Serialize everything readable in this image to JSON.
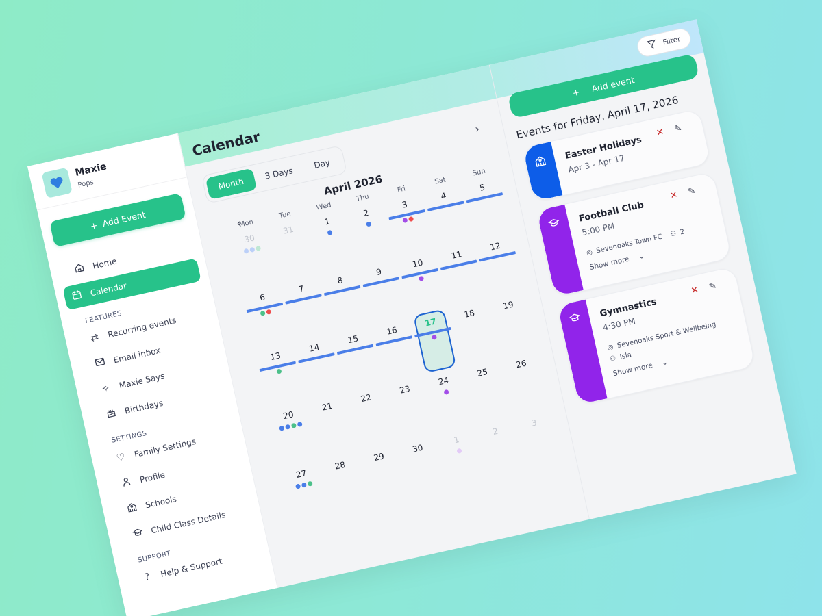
{
  "brand": {
    "name": "Maxie",
    "subtitle": "Pops",
    "logo_icon": "heart-icon"
  },
  "sidebar": {
    "add_event_label": "Add Event",
    "items": [
      {
        "label": "Home",
        "icon": "home-icon",
        "active": false
      },
      {
        "label": "Calendar",
        "icon": "calendar-icon",
        "active": true
      }
    ],
    "sections": [
      {
        "title": "FEATURES",
        "items": [
          {
            "label": "Recurring events",
            "icon": "repeat-icon"
          },
          {
            "label": "Email inbox",
            "icon": "mail-icon"
          },
          {
            "label": "Maxie Says",
            "icon": "sparkles-icon"
          },
          {
            "label": "Birthdays",
            "icon": "cake-icon"
          }
        ]
      },
      {
        "title": "SETTINGS",
        "items": [
          {
            "label": "Family Settings",
            "icon": "heart-outline-icon"
          },
          {
            "label": "Profile",
            "icon": "user-icon"
          },
          {
            "label": "Schools",
            "icon": "school-icon"
          },
          {
            "label": "Child Class Details",
            "icon": "graduation-cap-icon"
          }
        ]
      },
      {
        "title": "SUPPORT",
        "items": [
          {
            "label": "Help & Support",
            "icon": "help-icon"
          }
        ]
      }
    ]
  },
  "header": {
    "title": "Calendar"
  },
  "calendar": {
    "views": [
      "Month",
      "3 Days",
      "Day"
    ],
    "active_view": "Month",
    "month_label": "April 2026",
    "weekdays": [
      "Mon",
      "Tue",
      "Wed",
      "Thu",
      "Fri",
      "Sat",
      "Sun"
    ],
    "colors": {
      "blue": "#4a7ee8",
      "purple": "#a24de8",
      "red": "#ef4d4d",
      "green": "#4cc08a",
      "bar": "#4a7ee8",
      "today_border": "#1d63d1"
    },
    "weeks": [
      [
        {
          "d": "30",
          "muted": true,
          "dots": [
            "#bcd0f8",
            "#bcd0f8",
            "#bfe8d4"
          ]
        },
        {
          "d": "31",
          "muted": true,
          "dots": []
        },
        {
          "d": "1",
          "dots": [
            "#4a7ee8"
          ]
        },
        {
          "d": "2",
          "dots": [
            "#4a7ee8"
          ]
        },
        {
          "d": "3",
          "dots": [
            "#a24de8",
            "#ef4d4d"
          ],
          "bar": true
        },
        {
          "d": "4",
          "dots": [],
          "bar": true
        },
        {
          "d": "5",
          "dots": [],
          "bar": true
        }
      ],
      [
        {
          "d": "6",
          "dots": [
            "#4cc08a",
            "#ef4d4d"
          ],
          "bar": true
        },
        {
          "d": "7",
          "dots": [],
          "bar": true
        },
        {
          "d": "8",
          "dots": [],
          "bar": true
        },
        {
          "d": "9",
          "dots": [],
          "bar": true
        },
        {
          "d": "10",
          "dots": [
            "#a24de8"
          ],
          "bar": true
        },
        {
          "d": "11",
          "dots": [],
          "bar": true
        },
        {
          "d": "12",
          "dots": [],
          "bar": true
        }
      ],
      [
        {
          "d": "13",
          "dots": [
            "#4cc08a"
          ],
          "bar": true
        },
        {
          "d": "14",
          "dots": [],
          "bar": true
        },
        {
          "d": "15",
          "dots": [],
          "bar": true
        },
        {
          "d": "16",
          "dots": [],
          "bar": true
        },
        {
          "d": "17",
          "dots": [
            "#a24de8"
          ],
          "bar": true,
          "today": true
        },
        {
          "d": "18",
          "dots": []
        },
        {
          "d": "19",
          "dots": []
        }
      ],
      [
        {
          "d": "20",
          "dots": [
            "#4a7ee8",
            "#4a7ee8",
            "#4cc08a",
            "#4a7ee8"
          ]
        },
        {
          "d": "21",
          "dots": []
        },
        {
          "d": "22",
          "dots": []
        },
        {
          "d": "23",
          "dots": []
        },
        {
          "d": "24",
          "dots": [
            "#a24de8"
          ]
        },
        {
          "d": "25",
          "dots": []
        },
        {
          "d": "26",
          "dots": []
        }
      ],
      [
        {
          "d": "27",
          "dots": [
            "#4a7ee8",
            "#4a7ee8",
            "#4cc08a"
          ]
        },
        {
          "d": "28",
          "dots": []
        },
        {
          "d": "29",
          "dots": []
        },
        {
          "d": "30",
          "dots": []
        },
        {
          "d": "1",
          "muted": true,
          "dots": [
            "#e3cbf7"
          ]
        },
        {
          "d": "2",
          "muted": true,
          "dots": []
        },
        {
          "d": "3",
          "muted": true,
          "dots": []
        }
      ]
    ]
  },
  "events_panel": {
    "filter_label": "Filter",
    "add_event_label": "Add event",
    "title": "Events for Friday, April 17, 2026",
    "events": [
      {
        "title": "Easter Holidays",
        "subtitle": "Apr 3 - Apr 17",
        "color": "#0d5de8",
        "icon": "school-icon"
      },
      {
        "title": "Football Club",
        "subtitle": "5:00 PM",
        "color": "#9124ea",
        "icon": "graduation-cap-icon",
        "location": "Sevenoaks Town FC",
        "attendees": "2",
        "show_more": "Show more"
      },
      {
        "title": "Gymnastics",
        "subtitle": "4:30 PM",
        "color": "#9124ea",
        "icon": "graduation-cap-icon",
        "location": "Sevenoaks Sport & Wellbeing",
        "attendees": "Isla",
        "show_more": "Show more"
      }
    ]
  }
}
